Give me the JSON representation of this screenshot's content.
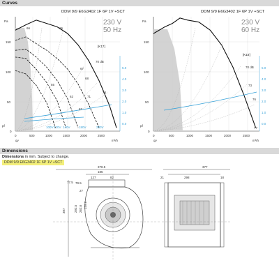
{
  "sections": {
    "curves_title": "Curves",
    "dimensions_title": "Dimensions",
    "dimensions_note": " in mm. Subject to change.",
    "model_highlight": "DDM 9/9 E6G3402 1F 6P 1V +SCT"
  },
  "charts": {
    "left": {
      "model": "DDM 9/9 E6G3402 1F 6P 1V +SCT",
      "voltage": "230 V",
      "frequency": "50 Hz",
      "box_label": "[K17]",
      "y_unit": "Pa",
      "y_ticks": [
        "150",
        "100",
        "50",
        "0"
      ],
      "x_ticks": [
        "0",
        "500",
        "1000",
        "1500",
        "2000",
        "2500",
        "3000"
      ],
      "right_axis_label": "LwA",
      "right_ticks": [
        "5.0",
        "4.0",
        "3.0",
        "2.0",
        "1.0",
        "0.0"
      ],
      "x_unit": "m³/h",
      "qv_label": "qv",
      "pf_label": "pf",
      "speed_labels": [
        "100V",
        "120V",
        "140V",
        "180V",
        "230V"
      ],
      "point_labels": [
        "66",
        "66",
        "70 dB",
        "67",
        "68",
        "55",
        "62",
        "67",
        "71",
        "74"
      ],
      "top_labels": [
        "100",
        "6.0",
        "6.5",
        "7.0"
      ]
    },
    "right": {
      "model": "DDM 9/9 E6G3402 1F 6P 1V +SCT",
      "voltage": "230 V",
      "frequency": "60 Hz",
      "box_label": "[K18]",
      "y_unit": "Pa",
      "y_ticks": [
        "150",
        "100",
        "50",
        "0"
      ],
      "x_ticks": [
        "0",
        "500",
        "1000",
        "1500",
        "2000",
        "2500"
      ],
      "right_ticks": [
        "5.0",
        "4.0",
        "3.0",
        "2.0",
        "1.0",
        "0.0"
      ],
      "x_unit": "m³/h",
      "qv_label": "qv",
      "pf_label": "pf",
      "point_labels": [
        "70 dB",
        "73",
        "76",
        "77"
      ]
    }
  },
  "chart_data": [
    {
      "type": "line",
      "title": "DDM 9/9 E6G3402 1F 6P 1V +SCT 230 V 50 Hz",
      "xlabel": "qv m³/h",
      "ylabel": "pf Pa",
      "xlim": [
        0,
        3000
      ],
      "ylim": [
        0,
        170
      ],
      "series": [
        {
          "name": "230V",
          "x": [
            0,
            300,
            600,
            900,
            1200,
            1500,
            1800,
            2100,
            2400,
            2700,
            2900
          ],
          "y": [
            150,
            158,
            165,
            160,
            155,
            145,
            128,
            105,
            75,
            38,
            5
          ]
        },
        {
          "name": "180V",
          "x": [
            0,
            300,
            600,
            900,
            1200,
            1500,
            1800,
            2100,
            2400
          ],
          "y": [
            135,
            140,
            130,
            120,
            108,
            92,
            70,
            40,
            5
          ]
        },
        {
          "name": "140V",
          "x": [
            0,
            300,
            600,
            900,
            1200,
            1500,
            1800
          ],
          "y": [
            120,
            122,
            110,
            95,
            75,
            48,
            5
          ]
        },
        {
          "name": "120V",
          "x": [
            0,
            300,
            600,
            900,
            1200,
            1450
          ],
          "y": [
            110,
            108,
            92,
            72,
            45,
            5
          ]
        },
        {
          "name": "100V",
          "x": [
            0,
            300,
            600,
            900,
            1150
          ],
          "y": [
            90,
            85,
            68,
            42,
            5
          ]
        }
      ]
    },
    {
      "type": "line",
      "title": "DDM 9/9 E6G3402 1F 6P 1V +SCT 230 V 60 Hz",
      "xlabel": "qv m³/h",
      "ylabel": "pf Pa",
      "xlim": [
        0,
        2800
      ],
      "ylim": [
        0,
        170
      ],
      "series": [
        {
          "name": "230V",
          "x": [
            0,
            300,
            500,
            700,
            900,
            1200,
            1500,
            1800,
            2100,
            2400,
            2700
          ],
          "y": [
            145,
            155,
            160,
            168,
            165,
            162,
            150,
            128,
            95,
            52,
            5
          ]
        }
      ]
    }
  ],
  "dimensions": {
    "front_view": [
      "378.5",
      "185",
      "127",
      "82",
      "77.5",
      "79.5",
      "27",
      "292.5",
      "262.6",
      "159.6",
      "387"
    ],
    "side_view": [
      "377",
      "298",
      "21",
      "18"
    ]
  }
}
